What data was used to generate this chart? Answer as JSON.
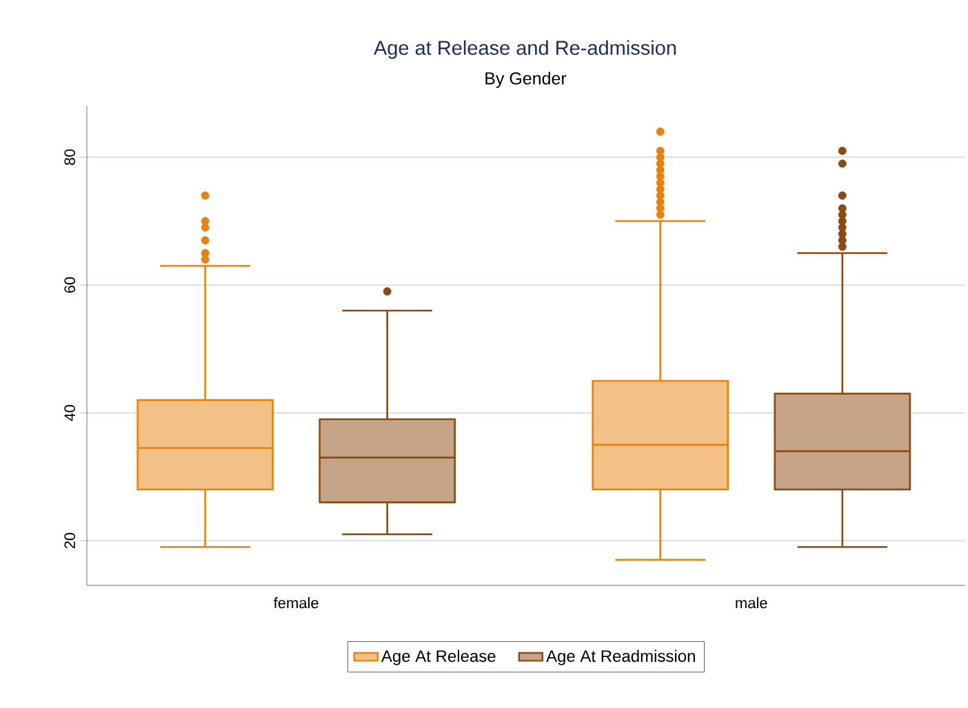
{
  "chart_data": {
    "type": "box",
    "title": "Age at Release and Re-admission",
    "subtitle": "By Gender",
    "categories": [
      "female",
      "male"
    ],
    "series": [
      {
        "name": "Age At Release",
        "color": "#e8820c",
        "boxes": [
          {
            "low": 19,
            "q1": 28,
            "median": 34.5,
            "q3": 42,
            "high": 63,
            "outliers": [
              64,
              65,
              67,
              69,
              70,
              74
            ]
          },
          {
            "low": 17,
            "q1": 28,
            "median": 35,
            "q3": 45,
            "high": 70,
            "outliers": [
              71,
              72,
              73,
              74,
              75,
              76,
              77,
              78,
              79,
              80,
              81,
              84
            ]
          }
        ]
      },
      {
        "name": "Age At Readmission",
        "color": "#8b4a0f",
        "boxes": [
          {
            "low": 21,
            "q1": 26,
            "median": 33,
            "q3": 39,
            "high": 56,
            "outliers": [
              59
            ]
          },
          {
            "low": 19,
            "q1": 28,
            "median": 34,
            "q3": 43,
            "high": 65,
            "outliers": [
              66,
              67,
              68,
              69,
              70,
              71,
              72,
              74,
              79,
              81
            ]
          }
        ]
      }
    ],
    "ylim": [
      13,
      88
    ],
    "yticks": [
      20,
      40,
      60,
      80
    ],
    "grid": "y",
    "legend": "bottom",
    "marker": "circle"
  }
}
